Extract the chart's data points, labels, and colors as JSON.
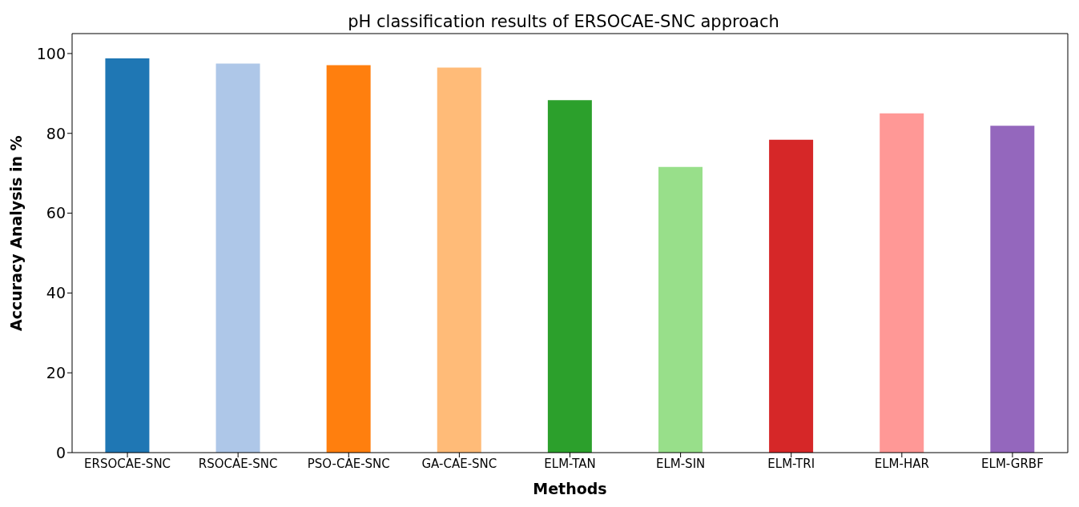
{
  "chart_data": {
    "type": "bar",
    "title": "pH classification results of ERSOCAE-SNC approach",
    "xlabel": "Methods",
    "ylabel": "Accuracy Analysis in %",
    "categories": [
      "ERSOCAE-SNC",
      "RSOCAE-SNC",
      "PSO-CAE-SNC",
      "GA-CAE-SNC",
      "ELM-TAN",
      "ELM-SIN",
      "ELM-TRI",
      "ELM-HAR",
      "ELM-GRBF"
    ],
    "values": [
      98.8,
      97.5,
      97.1,
      96.5,
      88.3,
      71.6,
      78.4,
      85.0,
      81.9
    ],
    "colors": [
      "#1f77b4",
      "#aec7e8",
      "#ff7f0e",
      "#ffbb78",
      "#2ca02c",
      "#98df8a",
      "#d62728",
      "#ff9896",
      "#9467bd"
    ],
    "ylim": [
      0,
      105
    ],
    "yticks": [
      0,
      20,
      40,
      60,
      80,
      100
    ],
    "grid": false,
    "legend": false
  }
}
